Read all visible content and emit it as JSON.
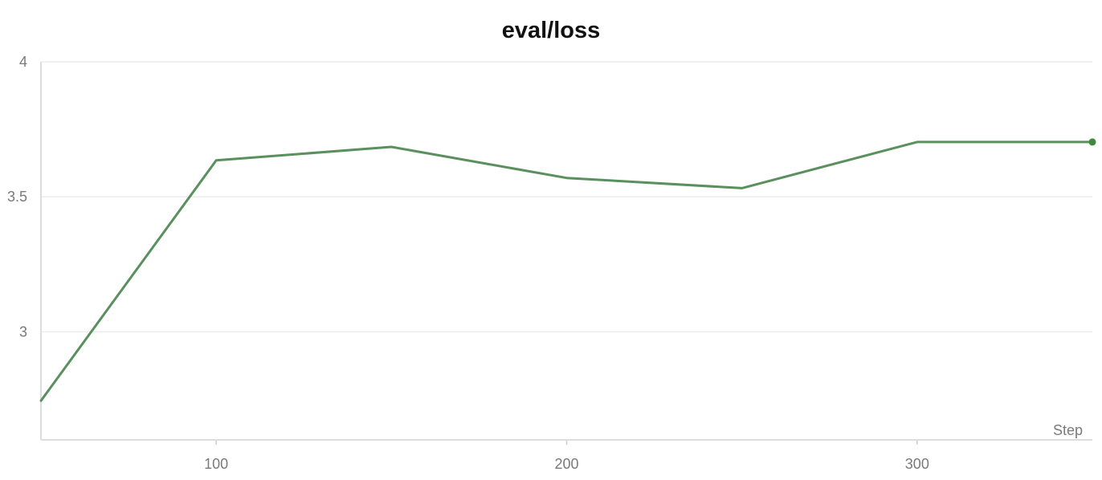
{
  "chart_data": {
    "type": "line",
    "title": "eval/loss",
    "xlabel": "Step",
    "ylabel": "",
    "xlim": [
      50,
      350
    ],
    "ylim": [
      2.6,
      4
    ],
    "x_ticks": [
      100,
      200,
      300
    ],
    "y_ticks": [
      3,
      3.5,
      4
    ],
    "grid": true,
    "series": [
      {
        "color": "#5a8f5e",
        "x": [
          50,
          100,
          150,
          200,
          250,
          300,
          350
        ],
        "y": [
          2.745,
          3.635,
          3.685,
          3.57,
          3.532,
          3.703,
          3.703
        ]
      }
    ]
  }
}
